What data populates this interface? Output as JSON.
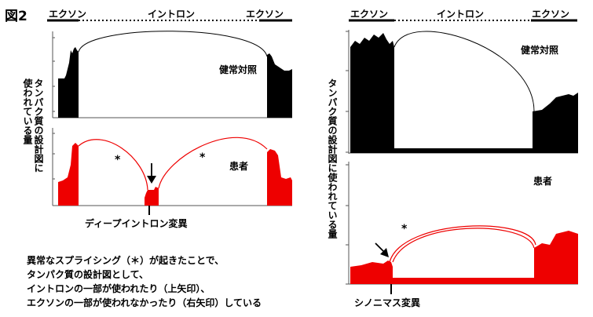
{
  "figure": {
    "label": "図2",
    "regions": {
      "exon": "エクソン",
      "intron": "イントロン"
    }
  },
  "left_panel": {
    "y_axis_label": "タンパク質の設計図に\n使われている量",
    "control_label": "健常対照",
    "patient_label": "患者",
    "asterisk": "*",
    "variant_label": "ディープイントロン変異"
  },
  "right_panel": {
    "y_axis_label": "タンパク質の設計図に使われている量",
    "control_label": "健常対照",
    "patient_label": "患者",
    "asterisk": "*",
    "variant_label": "シノニマス変異"
  },
  "caption": {
    "line1": "異常なスプライシング（＊）が起きたことで、",
    "line2": "タンパク質の設計図として、",
    "line3": "イントロンの一部が使われたり（上矢印）、",
    "line4": "エクソンの一部が使われなかったり（右矢印）している"
  },
  "colors": {
    "control": "#000000",
    "patient": "#ee0000",
    "background": "#ffffff"
  }
}
